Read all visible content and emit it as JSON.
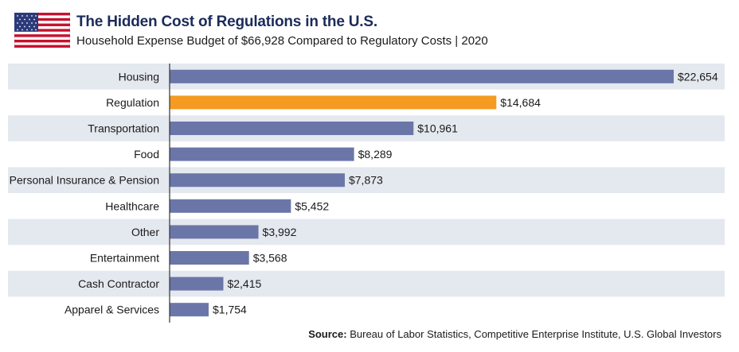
{
  "header": {
    "title": "The Hidden Cost of Regulations in the U.S.",
    "subtitle": "Household Expense Budget of $66,928 Compared to Regulatory Costs | 2020"
  },
  "source": {
    "label": "Source:",
    "text": "Bureau of Labor Statistics, Competitive Enterprise Institute, U.S. Global Investors"
  },
  "colors": {
    "bar_default": "#6b76a8",
    "bar_highlight": "#f59a23",
    "band": "#e4e8ef",
    "title": "#1b2b5a"
  },
  "chart_data": {
    "type": "bar",
    "orientation": "horizontal",
    "title": "The Hidden Cost of Regulations in the U.S.",
    "subtitle": "Household Expense Budget of $66,928 Compared to Regulatory Costs | 2020",
    "categories": [
      "Housing",
      "Regulation",
      "Transportation",
      "Food",
      "Personal Insurance & Pension",
      "Healthcare",
      "Other",
      "Entertainment",
      "Cash Contractor",
      "Apparel & Services"
    ],
    "values": [
      22654,
      14684,
      10961,
      8289,
      7873,
      5452,
      3992,
      3568,
      2415,
      1754
    ],
    "value_labels": [
      "$22,654",
      "$14,684",
      "$10,961",
      "$8,289",
      "$7,873",
      "$5,452",
      "$3,992",
      "$3,568",
      "$2,415",
      "$1,754"
    ],
    "highlight_category": "Regulation",
    "xlim": [
      0,
      22654
    ],
    "grid": false,
    "legend": "none"
  }
}
